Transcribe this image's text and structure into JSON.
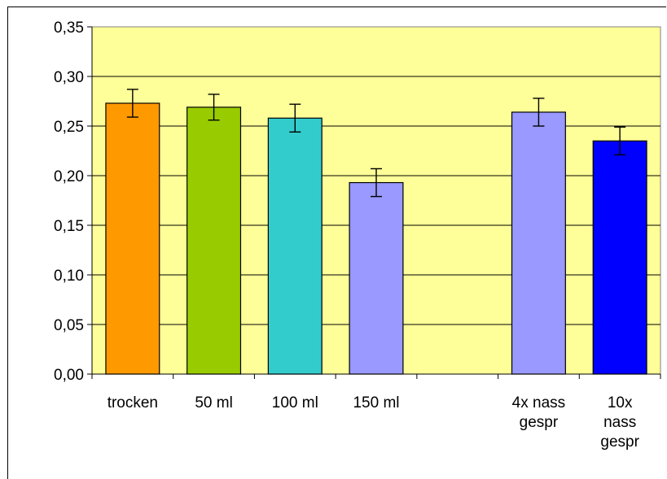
{
  "chart_data": {
    "type": "bar",
    "categories": [
      [
        "trocken"
      ],
      [
        "50 ml"
      ],
      [
        "100 ml"
      ],
      [
        "150 ml"
      ],
      [
        ""
      ],
      [
        "4x nass",
        "gespr"
      ],
      [
        "10x",
        "nass",
        "gespr"
      ]
    ],
    "values": [
      0.273,
      0.269,
      0.258,
      0.193,
      null,
      0.264,
      0.235
    ],
    "errors": [
      0.014,
      0.013,
      0.014,
      0.014,
      null,
      0.014,
      0.014
    ],
    "bar_colors": [
      "#ff9900",
      "#99cc00",
      "#33cccc",
      "#9999ff",
      null,
      "#9999ff",
      "#0000ff"
    ],
    "ylim": [
      0,
      0.35
    ],
    "yticks": [
      "0,00",
      "0,05",
      "0,10",
      "0,15",
      "0,20",
      "0,25",
      "0,30",
      "0,35"
    ],
    "ytick_values": [
      0,
      0.05,
      0.1,
      0.15,
      0.2,
      0.25,
      0.3,
      0.35
    ],
    "plot_background": "#ffff99",
    "grid": true,
    "title": "",
    "xlabel": "",
    "ylabel": ""
  }
}
